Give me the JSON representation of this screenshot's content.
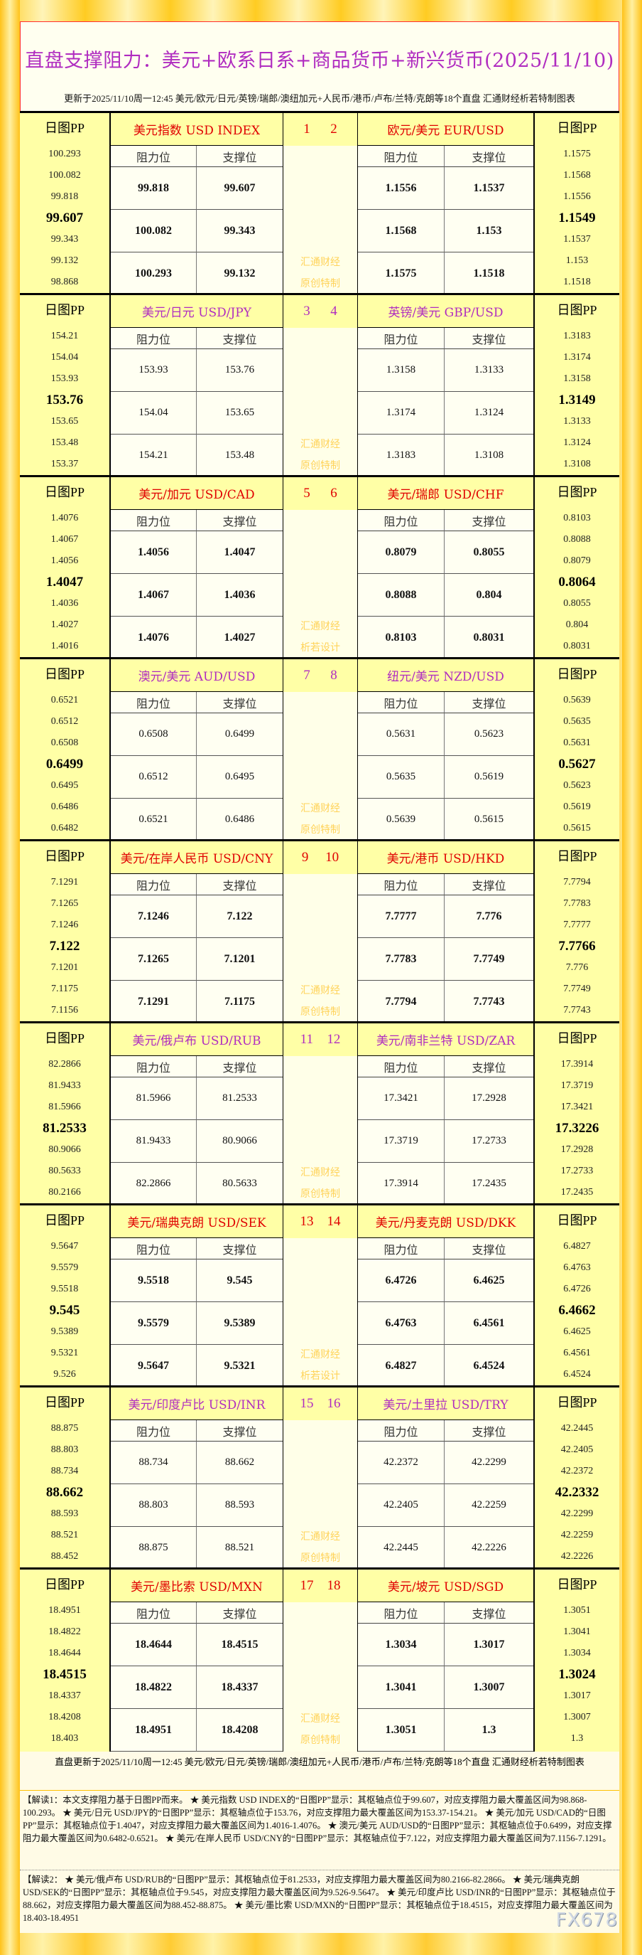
{
  "header": {
    "title": "直盘支撑阻力：美元+欧系日系+商品货币+新兴货币(2025/11/10)",
    "subtitle": "更新于2025/11/10周一12:45 美元/欧元/日元/英镑/瑞郎/澳纽加元+人民币/港币/卢布/兰特/克朗等18个直盘 汇通财经析若特制图表"
  },
  "labels": {
    "pp": "日图PP",
    "resist": "阻力位",
    "support": "支撑位",
    "watermark_top": "汇通财经"
  },
  "colors": {
    "red": "#e00000",
    "purple": "#b02cc0",
    "title": "#b02cc0"
  },
  "blocks": [
    {
      "style": "red",
      "nums": [
        "1",
        "2"
      ],
      "watermark": "原创特制",
      "left": {
        "name": "美元指数 USD INDEX",
        "pp": [
          "100.293",
          "100.082",
          "99.818",
          "99.607",
          "99.343",
          "99.132",
          "98.868"
        ],
        "resist": [
          "99.818",
          "100.082",
          "100.293"
        ],
        "support": [
          "99.607",
          "99.343",
          "99.132"
        ]
      },
      "right": {
        "name": "欧元/美元 EUR/USD",
        "pp": [
          "1.1575",
          "1.1568",
          "1.1556",
          "1.1549",
          "1.1537",
          "1.153",
          "1.1518"
        ],
        "resist": [
          "1.1556",
          "1.1568",
          "1.1575"
        ],
        "support": [
          "1.1537",
          "1.153",
          "1.1518"
        ]
      }
    },
    {
      "style": "pur",
      "nums": [
        "3",
        "4"
      ],
      "watermark": "原创特制",
      "left": {
        "name": "美元/日元 USD/JPY",
        "pp": [
          "154.21",
          "154.04",
          "153.93",
          "153.76",
          "153.65",
          "153.48",
          "153.37"
        ],
        "resist": [
          "153.93",
          "154.04",
          "154.21"
        ],
        "support": [
          "153.76",
          "153.65",
          "153.48"
        ]
      },
      "right": {
        "name": "英镑/美元 GBP/USD",
        "pp": [
          "1.3183",
          "1.3174",
          "1.3158",
          "1.3149",
          "1.3133",
          "1.3124",
          "1.3108"
        ],
        "resist": [
          "1.3158",
          "1.3174",
          "1.3183"
        ],
        "support": [
          "1.3133",
          "1.3124",
          "1.3108"
        ]
      }
    },
    {
      "style": "red",
      "nums": [
        "5",
        "6"
      ],
      "watermark": "析若设计",
      "left": {
        "name": "美元/加元 USD/CAD",
        "pp": [
          "1.4076",
          "1.4067",
          "1.4056",
          "1.4047",
          "1.4036",
          "1.4027",
          "1.4016"
        ],
        "resist": [
          "1.4056",
          "1.4067",
          "1.4076"
        ],
        "support": [
          "1.4047",
          "1.4036",
          "1.4027"
        ]
      },
      "right": {
        "name": "美元/瑞郎 USD/CHF",
        "pp": [
          "0.8103",
          "0.8088",
          "0.8079",
          "0.8064",
          "0.8055",
          "0.804",
          "0.8031"
        ],
        "resist": [
          "0.8079",
          "0.8088",
          "0.8103"
        ],
        "support": [
          "0.8055",
          "0.804",
          "0.8031"
        ]
      }
    },
    {
      "style": "pur",
      "nums": [
        "7",
        "8"
      ],
      "watermark": "原创特制",
      "left": {
        "name": "澳元/美元 AUD/USD",
        "pp": [
          "0.6521",
          "0.6512",
          "0.6508",
          "0.6499",
          "0.6495",
          "0.6486",
          "0.6482"
        ],
        "resist": [
          "0.6508",
          "0.6512",
          "0.6521"
        ],
        "support": [
          "0.6499",
          "0.6495",
          "0.6486"
        ]
      },
      "right": {
        "name": "纽元/美元 NZD/USD",
        "pp": [
          "0.5639",
          "0.5635",
          "0.5631",
          "0.5627",
          "0.5623",
          "0.5619",
          "0.5615"
        ],
        "resist": [
          "0.5631",
          "0.5635",
          "0.5639"
        ],
        "support": [
          "0.5623",
          "0.5619",
          "0.5615"
        ]
      }
    },
    {
      "style": "red",
      "nums": [
        "9",
        "10"
      ],
      "watermark": "原创特制",
      "left": {
        "name": "美元/在岸人民币 USD/CNY",
        "pp": [
          "7.1291",
          "7.1265",
          "7.1246",
          "7.122",
          "7.1201",
          "7.1175",
          "7.1156"
        ],
        "resist": [
          "7.1246",
          "7.1265",
          "7.1291"
        ],
        "support": [
          "7.122",
          "7.1201",
          "7.1175"
        ]
      },
      "right": {
        "name": "美元/港币 USD/HKD",
        "pp": [
          "7.7794",
          "7.7783",
          "7.7777",
          "7.7766",
          "7.776",
          "7.7749",
          "7.7743"
        ],
        "resist": [
          "7.7777",
          "7.7783",
          "7.7794"
        ],
        "support": [
          "7.776",
          "7.7749",
          "7.7743"
        ]
      }
    },
    {
      "style": "pur",
      "nums": [
        "11",
        "12"
      ],
      "watermark": "原创特制",
      "left": {
        "name": "美元/俄卢布 USD/RUB",
        "pp": [
          "82.2866",
          "81.9433",
          "81.5966",
          "81.2533",
          "80.9066",
          "80.5633",
          "80.2166"
        ],
        "resist": [
          "81.5966",
          "81.9433",
          "82.2866"
        ],
        "support": [
          "81.2533",
          "80.9066",
          "80.5633"
        ]
      },
      "right": {
        "name": "美元/南非兰特 USD/ZAR",
        "pp": [
          "17.3914",
          "17.3719",
          "17.3421",
          "17.3226",
          "17.2928",
          "17.2733",
          "17.2435"
        ],
        "resist": [
          "17.3421",
          "17.3719",
          "17.3914"
        ],
        "support": [
          "17.2928",
          "17.2733",
          "17.2435"
        ]
      }
    },
    {
      "style": "red",
      "nums": [
        "13",
        "14"
      ],
      "watermark": "析若设计",
      "left": {
        "name": "美元/瑞典克朗 USD/SEK",
        "pp": [
          "9.5647",
          "9.5579",
          "9.5518",
          "9.545",
          "9.5389",
          "9.5321",
          "9.526"
        ],
        "resist": [
          "9.5518",
          "9.5579",
          "9.5647"
        ],
        "support": [
          "9.545",
          "9.5389",
          "9.5321"
        ]
      },
      "right": {
        "name": "美元/丹麦克朗 USD/DKK",
        "pp": [
          "6.4827",
          "6.4763",
          "6.4726",
          "6.4662",
          "6.4625",
          "6.4561",
          "6.4524"
        ],
        "resist": [
          "6.4726",
          "6.4763",
          "6.4827"
        ],
        "support": [
          "6.4625",
          "6.4561",
          "6.4524"
        ]
      }
    },
    {
      "style": "pur",
      "nums": [
        "15",
        "16"
      ],
      "watermark": "原创特制",
      "left": {
        "name": "美元/印度卢比 USD/INR",
        "pp": [
          "88.875",
          "88.803",
          "88.734",
          "88.662",
          "88.593",
          "88.521",
          "88.452"
        ],
        "resist": [
          "88.734",
          "88.803",
          "88.875"
        ],
        "support": [
          "88.662",
          "88.593",
          "88.521"
        ]
      },
      "right": {
        "name": "美元/土里拉 USD/TRY",
        "pp": [
          "42.2445",
          "42.2405",
          "42.2372",
          "42.2332",
          "42.2299",
          "42.2259",
          "42.2226"
        ],
        "resist": [
          "42.2372",
          "42.2405",
          "42.2445"
        ],
        "support": [
          "42.2299",
          "42.2259",
          "42.2226"
        ]
      }
    },
    {
      "style": "red",
      "nums": [
        "17",
        "18"
      ],
      "watermark": "原创特制",
      "left": {
        "name": "美元/墨比索 USD/MXN",
        "pp": [
          "18.4951",
          "18.4822",
          "18.4644",
          "18.4515",
          "18.4337",
          "18.4208",
          "18.403"
        ],
        "resist": [
          "18.4644",
          "18.4822",
          "18.4951"
        ],
        "support": [
          "18.4515",
          "18.4337",
          "18.4208"
        ]
      },
      "right": {
        "name": "美元/坡元 USD/SGD",
        "pp": [
          "1.3051",
          "1.3041",
          "1.3034",
          "1.3024",
          "1.3017",
          "1.3007",
          "1.3"
        ],
        "resist": [
          "1.3034",
          "1.3041",
          "1.3051"
        ],
        "support": [
          "1.3017",
          "1.3007",
          "1.3"
        ]
      }
    }
  ],
  "footer": {
    "update": "直盘更新于2025/11/10周一12:45 美元/欧元/日元/英镑/瑞郎/澳纽加元+人民币/港币/卢布/兰特/克朗等18个直盘 汇通财经析若特制图表",
    "note1": "【解读1：本文支撑阻力基于日图PP而来。 ★ 美元指数 USD INDEX的“日图PP”显示：其枢轴点位于99.607，对应支撑阻力最大覆盖区间为98.868-100.293。 ★ 美元/日元 USD/JPY的“日图PP”显示：其枢轴点位于153.76，对应支撑阻力最大覆盖区间为153.37-154.21。 ★ 美元/加元 USD/CAD的“日图PP”显示：其枢轴点位于1.4047，对应支撑阻力最大覆盖区间为1.4016-1.4076。 ★ 澳元/美元 AUD/USD的“日图PP”显示：其枢轴点位于0.6499，对应支撑阻力最大覆盖区间为0.6482-0.6521。 ★ 美元/在岸人民币 USD/CNY的“日图PP”显示：其枢轴点位于7.122，对应支撑阻力最大覆盖区间为7.1156-7.1291。",
    "note2": "【解读2： ★ 美元/俄卢布 USD/RUB的“日图PP”显示：其枢轴点位于81.2533，对应支撑阻力最大覆盖区间为80.2166-82.2866。 ★ 美元/瑞典克朗 USD/SEK的“日图PP”显示：其枢轴点位于9.545，对应支撑阻力最大覆盖区间为9.526-9.5647。 ★ 美元/印度卢比 USD/INR的“日图PP”显示：其枢轴点位于88.662，对应支撑阻力最大覆盖区间为88.452-88.875。 ★ 美元/墨比索 USD/MXN的“日图PP”显示：其枢轴点位于18.4515，对应支撑阻力最大覆盖区间为18.403-18.4951",
    "logo": "FX678"
  }
}
